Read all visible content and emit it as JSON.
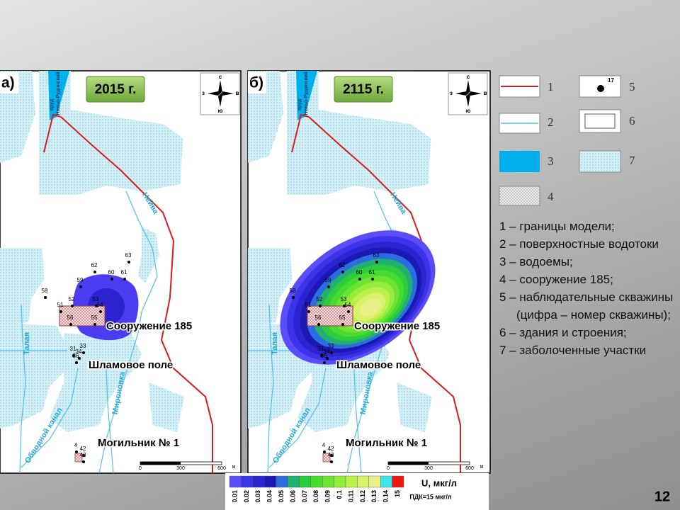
{
  "panels": [
    {
      "label": "а)",
      "year": "2015 г.",
      "compass": {
        "n": "с",
        "w": "з",
        "e": "в",
        "s": "ю"
      },
      "pond": [
        "пруд",
        "Невьо-Рудянский"
      ],
      "rivers": {
        "neiva": "Нейва",
        "talaya": "Талая",
        "mironovka": "Мироновка",
        "canal": "Обводной канал"
      },
      "places": {
        "building": "Сооружение 185",
        "sludge": "Шламовое поле",
        "burial": "Могильник № 1"
      },
      "wells": [
        "63",
        "62",
        "60",
        "61",
        "59",
        "58",
        "52",
        "53",
        "51",
        "54",
        "56",
        "55",
        "31",
        "33",
        "34",
        "36",
        "4",
        "42",
        "43"
      ],
      "scale": {
        "ticks": [
          "0",
          "300",
          "600"
        ],
        "unit": "м"
      }
    },
    {
      "label": "б)",
      "year": "2115 г.",
      "compass": {
        "n": "с",
        "w": "з",
        "e": "в",
        "s": "ю"
      },
      "pond": [
        "пруд",
        "Невьо-Рудянский"
      ],
      "rivers": {
        "neiva": "Нейва",
        "talaya": "Талая",
        "mironovka": "Мироновка",
        "canal": "Обводной канал"
      },
      "places": {
        "building": "Сооружение 185",
        "sludge": "Шламовое поле",
        "burial": "Могильник № 1"
      },
      "wells": [
        "63",
        "62",
        "60",
        "61",
        "59",
        "58",
        "52",
        "53",
        "51",
        "54",
        "56",
        "55",
        "31",
        "33",
        "34",
        "36",
        "4",
        "42",
        "43"
      ],
      "scale": {
        "ticks": [
          "0",
          "300",
          "600"
        ],
        "unit": "м"
      }
    }
  ],
  "legend": {
    "symbols": [
      "1",
      "2",
      "3",
      "4",
      "5",
      "6",
      "7"
    ],
    "well_example": "17",
    "items": [
      "1 – границы модели;",
      "2 – поверхностные водотоки",
      "3 – водоемы;",
      "4 – сооружение 185;",
      "5 – наблюдательные скважины (цифра – номер скважины);",
      "6 – здания и строения;",
      "7 – заболоченные участки"
    ]
  },
  "color_scale": {
    "title": "U, мкг/л",
    "note": "ПДК=15 мкг/л",
    "labels": [
      "0.01",
      "0.02",
      "0.03",
      "0.04",
      "0.05",
      "0.06",
      "0.07",
      "0.08",
      "0.09",
      "0.1",
      "0.11",
      "0.12",
      "0.13",
      "0.14",
      "15"
    ],
    "colors": [
      "#5a4cf8",
      "#3c34ea",
      "#2a24d2",
      "#1c18b4",
      "#2a6ee0",
      "#22b070",
      "#2ccc3c",
      "#46dc30",
      "#6ee432",
      "#96ec3c",
      "#bcf04c",
      "#daf26a",
      "#e8f08c",
      "#3ce6e6",
      "#f01414"
    ]
  },
  "page_number": "12"
}
